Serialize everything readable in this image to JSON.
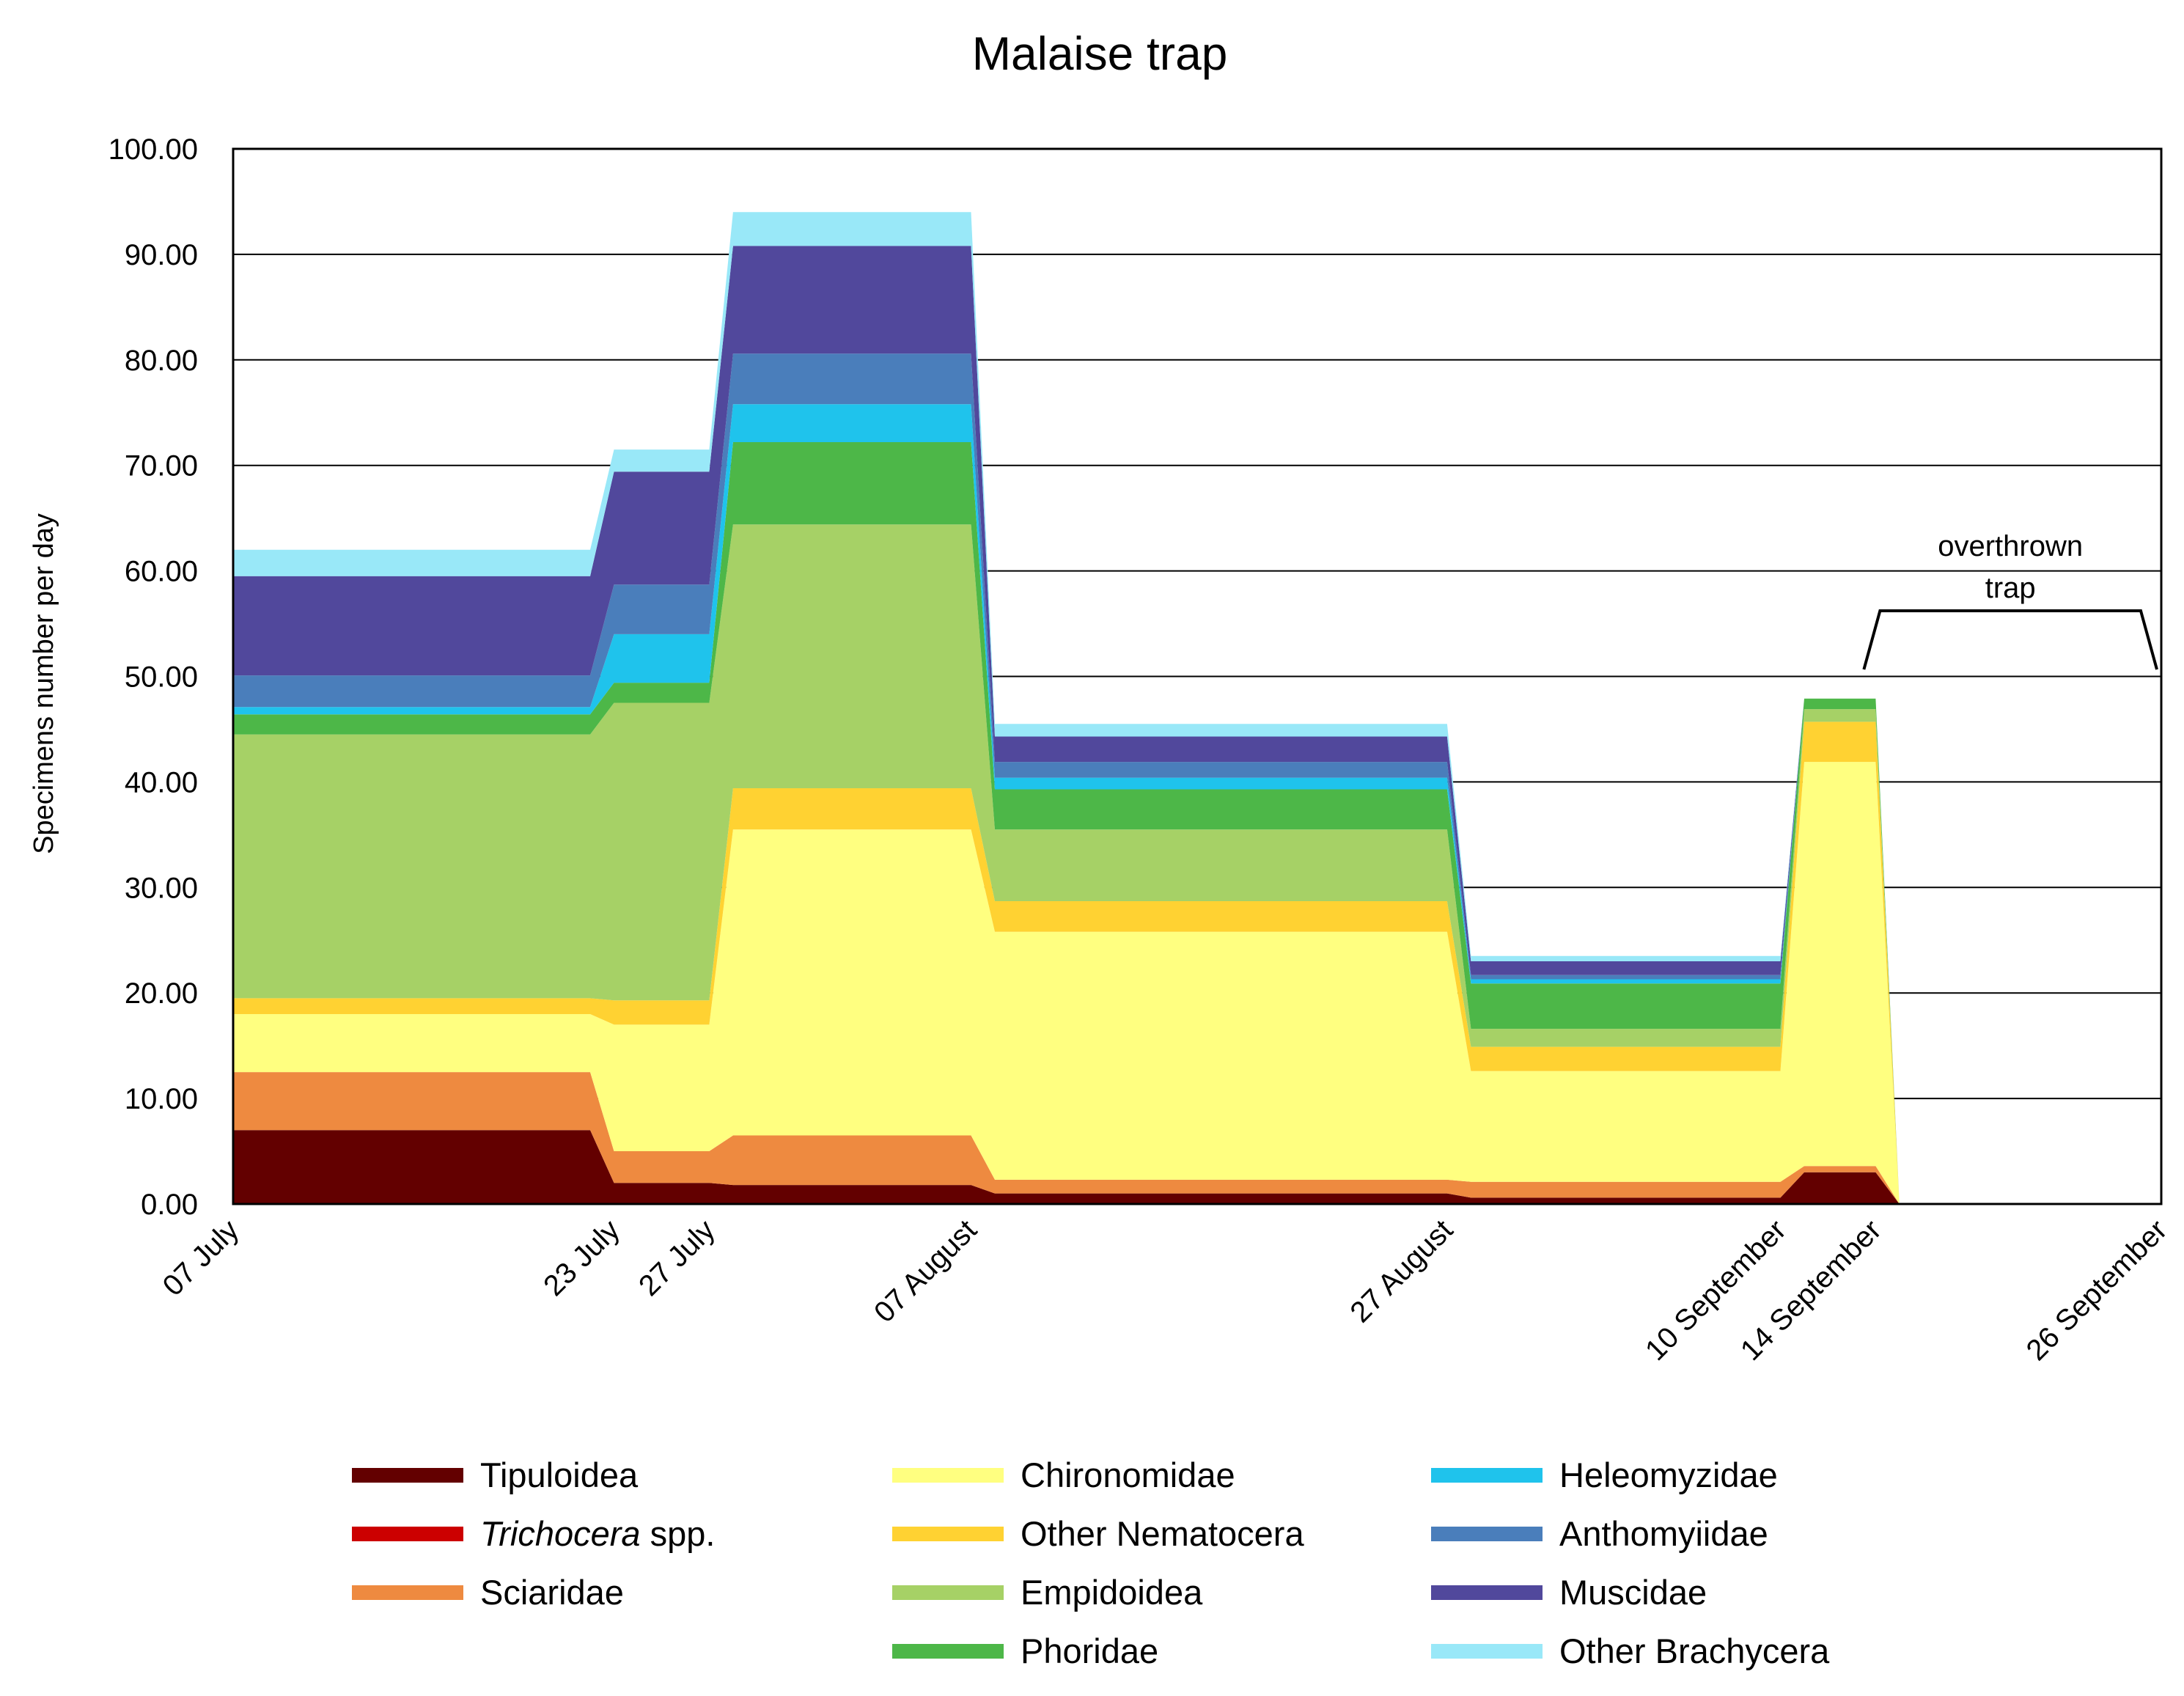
{
  "chart_data": {
    "type": "area",
    "stacked": true,
    "title": "Malaise trap",
    "xlabel": "",
    "ylabel": "Specimens number per day",
    "ylim": [
      0,
      100
    ],
    "yticks": [
      "0.00",
      "10.00",
      "20.00",
      "30.00",
      "40.00",
      "50.00",
      "60.00",
      "70.00",
      "80.00",
      "90.00",
      "100.00"
    ],
    "xlim": [
      "07 July",
      "26 September"
    ],
    "x_day_offsets": [
      0,
      15,
      16,
      20,
      21,
      31,
      32,
      51,
      52,
      65,
      66,
      69,
      70,
      81
    ],
    "x_tick_labels": [
      {
        "label": "07 July",
        "day": 0
      },
      {
        "label": "23 July",
        "day": 16
      },
      {
        "label": "27 July",
        "day": 20
      },
      {
        "label": "07 August",
        "day": 31
      },
      {
        "label": "27 August",
        "day": 51
      },
      {
        "label": "10 September",
        "day": 65
      },
      {
        "label": "14 September",
        "day": 69
      },
      {
        "label": "26 September",
        "day": 81
      }
    ],
    "series": [
      {
        "name": "Tipuloidea",
        "color": "#630000",
        "values": [
          7,
          7,
          2,
          2,
          1.8,
          1.8,
          1,
          1,
          0.6,
          0.6,
          3,
          3,
          0,
          0
        ]
      },
      {
        "name": "Trichocera spp.",
        "italic": "Trichocera",
        "suffix": " spp.",
        "color": "#cc0000",
        "values": [
          0,
          0,
          0,
          0,
          0,
          0,
          0,
          0,
          0,
          0,
          0,
          0,
          0,
          0
        ]
      },
      {
        "name": "Sciaridae",
        "color": "#ee8a40",
        "values": [
          5.5,
          5.5,
          3,
          3,
          4.7,
          4.7,
          1.3,
          1.3,
          1.5,
          1.5,
          0.6,
          0.6,
          0,
          0
        ]
      },
      {
        "name": "Chironomidae",
        "color": "#ffff80",
        "values": [
          5.5,
          5.5,
          12,
          12,
          29,
          29,
          23.5,
          23.5,
          10.5,
          10.5,
          38.3,
          38.3,
          0,
          0
        ]
      },
      {
        "name": "Other Nematocera",
        "color": "#ffd232",
        "values": [
          1.5,
          1.5,
          2.3,
          2.3,
          3.9,
          3.9,
          2.9,
          2.9,
          2.3,
          2.3,
          3.8,
          3.8,
          0,
          0
        ]
      },
      {
        "name": "Empidoidea",
        "color": "#a6d166",
        "values": [
          25,
          25,
          28.2,
          28.2,
          25,
          25,
          6.8,
          6.8,
          1.7,
          1.7,
          1.2,
          1.2,
          0,
          0
        ]
      },
      {
        "name": "Phoridae",
        "color": "#4db748",
        "values": [
          1.9,
          1.9,
          1.9,
          1.9,
          7.8,
          7.8,
          3.8,
          3.8,
          4.3,
          4.3,
          1,
          1,
          0,
          0
        ]
      },
      {
        "name": "Heleomyzidae",
        "color": "#1fc3ec",
        "values": [
          0.7,
          0.7,
          4.6,
          4.6,
          3.6,
          3.6,
          1.1,
          1.1,
          0.4,
          0.4,
          0,
          0,
          0,
          0
        ]
      },
      {
        "name": "Anthomyiidae",
        "color": "#4a7ebb",
        "values": [
          3,
          3,
          4.7,
          4.7,
          4.8,
          4.8,
          1.5,
          1.5,
          0.4,
          0.4,
          0,
          0,
          0,
          0
        ]
      },
      {
        "name": "Muscidae",
        "color": "#51489c",
        "values": [
          9.4,
          9.4,
          10.7,
          10.7,
          10.2,
          10.2,
          2.4,
          2.4,
          1.3,
          1.3,
          0,
          0,
          0,
          0
        ]
      },
      {
        "name": "Other Brachycera",
        "color": "#99e8f8",
        "values": [
          2.5,
          2.5,
          2.1,
          2.1,
          3.2,
          3.2,
          1.2,
          1.2,
          0.5,
          0.5,
          0,
          0,
          0,
          0
        ]
      }
    ],
    "annotation": {
      "text": [
        "overthrown",
        "trap"
      ],
      "from": "14 September",
      "to": "26 September"
    },
    "legend_position": "bottom",
    "grid": true
  }
}
